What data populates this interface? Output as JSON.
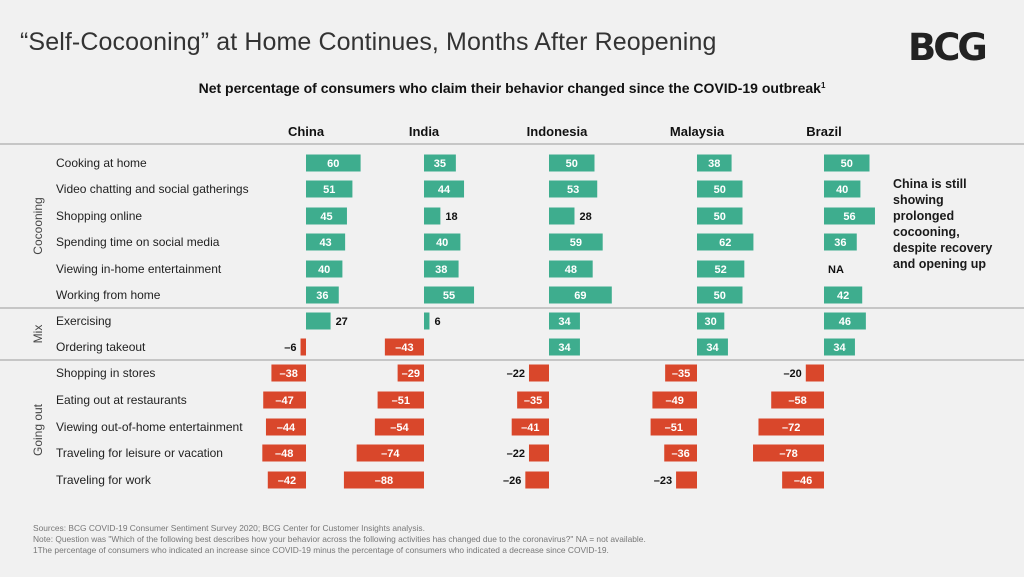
{
  "header": {
    "title": "“Self-Cocooning” at Home Continues, Months After Reopening",
    "logo": "BCG",
    "subtitle": "Net percentage of consumers who claim their behavior changed since the COVID-19 outbreak",
    "subtitle_mark": "1"
  },
  "note": "China is still showing prolonged cocooning, despite recovery and opening up",
  "footer": {
    "sources": "Sources: BCG COVID-19 Consumer Sentiment Survey 2020; BCG Center for Customer Insights analysis.",
    "question_note": "Note: Question was \"Which of the following best describes how your behavior across the following activities has changed due to the coronavirus?\" NA = not available.",
    "footnote": "1The percentage of consumers who indicated an increase since COVID-19 minus the percentage of consumers who indicated a decrease since COVID-19."
  },
  "colors": {
    "positive": "#3ead8e",
    "negative": "#d9472b",
    "divider": "#9a9a9a",
    "background": "#f1f1f1"
  },
  "chart_data": {
    "type": "bar",
    "orientation": "horizontal",
    "title": "Net percentage of consumers who claim their behavior changed since the COVID-19 outbreak",
    "countries": [
      "China",
      "India",
      "Indonesia",
      "Malaysia",
      "Brazil"
    ],
    "groups": [
      {
        "name": "Cocooning",
        "rows": [
          0,
          1,
          2,
          3,
          4,
          5
        ]
      },
      {
        "name": "Mix",
        "rows": [
          6,
          7
        ]
      },
      {
        "name": "Going out",
        "rows": [
          8,
          9,
          10,
          11,
          12
        ]
      }
    ],
    "categories": [
      "Cooking at home",
      "Video chatting and social gatherings",
      "Shopping online",
      "Spending time on social media",
      "Viewing in-home entertainment",
      "Working from home",
      "Exercising",
      "Ordering takeout",
      "Shopping in stores",
      "Eating out at restaurants",
      "Viewing out-of-home entertainment",
      "Traveling for leisure or vacation",
      "Traveling for work"
    ],
    "series": [
      {
        "name": "China",
        "values": [
          60,
          51,
          45,
          43,
          40,
          36,
          27,
          -6,
          -38,
          -47,
          -44,
          -48,
          -42
        ]
      },
      {
        "name": "India",
        "values": [
          35,
          44,
          18,
          40,
          38,
          55,
          6,
          -43,
          -29,
          -51,
          -54,
          -74,
          -88
        ]
      },
      {
        "name": "Indonesia",
        "values": [
          50,
          53,
          28,
          59,
          48,
          69,
          34,
          34,
          -22,
          -35,
          -41,
          -22,
          -26
        ]
      },
      {
        "name": "Malaysia",
        "values": [
          38,
          50,
          50,
          62,
          52,
          50,
          30,
          34,
          -35,
          -49,
          -51,
          -36,
          -23
        ]
      },
      {
        "name": "Brazil",
        "values": [
          50,
          40,
          56,
          36,
          null,
          42,
          46,
          34,
          -20,
          -58,
          -72,
          -78,
          -46
        ]
      }
    ],
    "na_label": "NA",
    "negative_prefix": "–"
  }
}
